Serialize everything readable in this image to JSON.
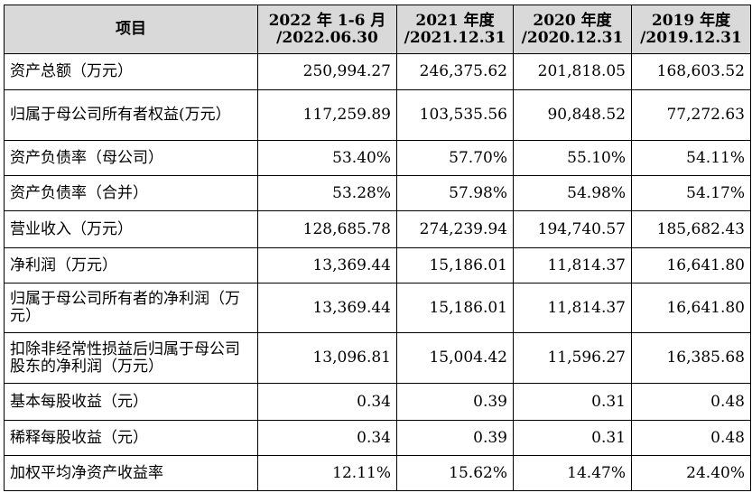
{
  "header": {
    "item": "项目",
    "periods": [
      {
        "line1": "2022 年 1-6 月",
        "line2": "/2022.06.30"
      },
      {
        "line1": "2021 年度",
        "line2": "/2021.12.31"
      },
      {
        "line1": "2020 年度",
        "line2": "/2020.12.31"
      },
      {
        "line1": "2019 年度",
        "line2": "/2019.12.31"
      }
    ]
  },
  "rows": [
    {
      "label": "资产总额（万元）",
      "values": [
        "250,994.27",
        "246,375.62",
        "201,818.05",
        "168,603.52"
      ]
    },
    {
      "label": "归属于母公司所有者权益(万元）",
      "values": [
        "117,259.89",
        "103,535.56",
        "90,848.52",
        "77,272.63"
      ]
    },
    {
      "label": "资产负债率（母公司）",
      "values": [
        "53.40%",
        "57.70%",
        "55.10%",
        "54.11%"
      ]
    },
    {
      "label": "资产负债率（合并）",
      "values": [
        "53.28%",
        "57.98%",
        "54.98%",
        "54.17%"
      ]
    },
    {
      "label": "营业收入（万元）",
      "values": [
        "128,685.78",
        "274,239.94",
        "194,740.57",
        "185,682.43"
      ]
    },
    {
      "label": "净利润（万元）",
      "values": [
        "13,369.44",
        "15,186.01",
        "11,814.37",
        "16,641.80"
      ]
    },
    {
      "label": "归属于母公司所有者的净利润（万元）",
      "values": [
        "13,369.44",
        "15,186.01",
        "11,814.37",
        "16,641.80"
      ]
    },
    {
      "label": "扣除非经常性损益后归属于母公司股东的净利润（万元）",
      "values": [
        "13,096.81",
        "15,004.42",
        "11,596.27",
        "16,385.68"
      ]
    },
    {
      "label": "基本每股收益（元）",
      "values": [
        "0.34",
        "0.39",
        "0.31",
        "0.48"
      ]
    },
    {
      "label": "稀释每股收益（元）",
      "values": [
        "0.34",
        "0.39",
        "0.31",
        "0.48"
      ]
    },
    {
      "label": "加权平均净资产收益率",
      "values": [
        "12.11%",
        "15.62%",
        "14.47%",
        "24.40%"
      ]
    }
  ]
}
